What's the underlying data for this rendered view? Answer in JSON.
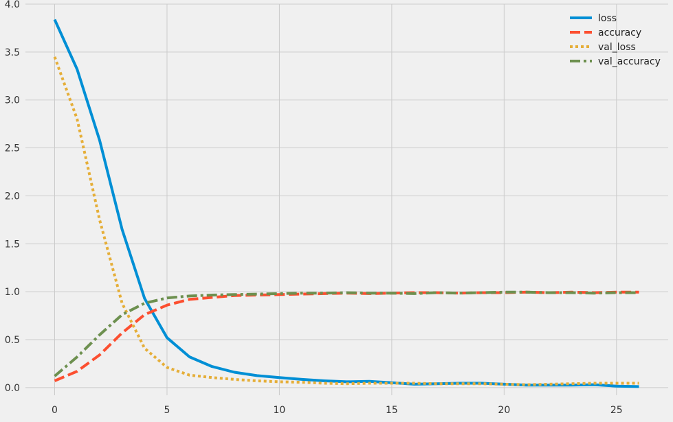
{
  "chart_data": {
    "type": "line",
    "title": "",
    "xlabel": "",
    "ylabel": "",
    "xlim": [
      -1.3,
      27.3
    ],
    "ylim": [
      -0.08,
      4.0
    ],
    "xticks": [
      0,
      5,
      10,
      15,
      20,
      25
    ],
    "yticks": [
      0.0,
      0.5,
      1.0,
      1.5,
      2.0,
      2.5,
      3.0,
      3.5,
      4.0
    ],
    "xtick_labels": [
      "0",
      "5",
      "10",
      "15",
      "20",
      "25"
    ],
    "ytick_labels": [
      "0.0",
      "0.5",
      "1.0",
      "1.5",
      "2.0",
      "2.5",
      "3.0",
      "3.5",
      "4.0"
    ],
    "grid": true,
    "legend_position": "top-right",
    "x": [
      0,
      1,
      2,
      3,
      4,
      5,
      6,
      7,
      8,
      9,
      10,
      11,
      12,
      13,
      14,
      15,
      16,
      17,
      18,
      19,
      20,
      21,
      22,
      23,
      24,
      25,
      26
    ],
    "series": [
      {
        "name": "loss",
        "color": "#008fd5",
        "style": "solid",
        "values": [
          3.84,
          3.32,
          2.58,
          1.65,
          0.93,
          0.52,
          0.32,
          0.22,
          0.16,
          0.125,
          0.105,
          0.085,
          0.07,
          0.06,
          0.065,
          0.05,
          0.035,
          0.04,
          0.045,
          0.045,
          0.035,
          0.025,
          0.025,
          0.025,
          0.03,
          0.015,
          0.01
        ]
      },
      {
        "name": "accuracy",
        "color": "#fc4f30",
        "style": "dashed",
        "values": [
          0.07,
          0.17,
          0.34,
          0.57,
          0.76,
          0.86,
          0.92,
          0.94,
          0.96,
          0.965,
          0.97,
          0.975,
          0.98,
          0.985,
          0.98,
          0.985,
          0.99,
          0.99,
          0.985,
          0.99,
          0.99,
          0.995,
          0.99,
          0.995,
          0.99,
          0.995,
          0.995
        ]
      },
      {
        "name": "val_loss",
        "color": "#e5ae38",
        "style": "dotted",
        "values": [
          3.45,
          2.8,
          1.75,
          0.88,
          0.41,
          0.21,
          0.13,
          0.105,
          0.085,
          0.07,
          0.06,
          0.055,
          0.045,
          0.04,
          0.045,
          0.045,
          0.045,
          0.04,
          0.04,
          0.04,
          0.035,
          0.03,
          0.035,
          0.04,
          0.045,
          0.045,
          0.045
        ]
      },
      {
        "name": "val_accuracy",
        "color": "#6d904f",
        "style": "dashdot",
        "values": [
          0.12,
          0.32,
          0.55,
          0.76,
          0.88,
          0.935,
          0.955,
          0.965,
          0.97,
          0.975,
          0.98,
          0.985,
          0.985,
          0.99,
          0.985,
          0.985,
          0.98,
          0.99,
          0.985,
          0.99,
          0.995,
          0.995,
          0.99,
          0.99,
          0.985,
          0.99,
          0.99
        ]
      }
    ]
  }
}
